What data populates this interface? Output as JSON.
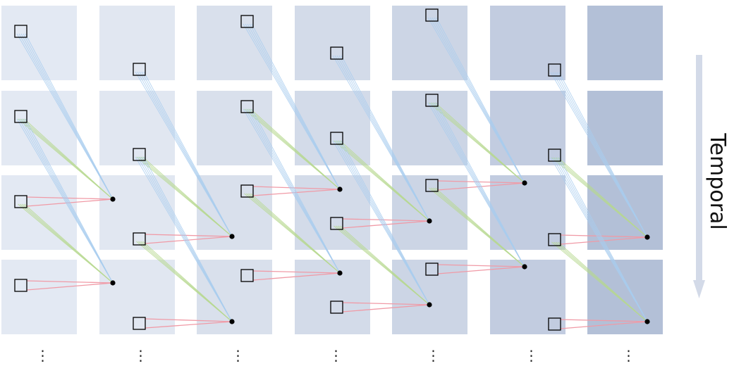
{
  "axis": {
    "label": "Temporal",
    "arrow_color": "#d3dae8"
  },
  "continuation_marker": "⋮",
  "colors": {
    "cell_shades": [
      "#e3e9f3",
      "#e1e7f1",
      "#d9e0ec",
      "#d3dbe9",
      "#ccd5e5",
      "#c2cce0",
      "#b3c0d7"
    ],
    "local_links": "#f09aa6",
    "spatial_links": "#b6d88e",
    "temporal_links": "#a8cdee",
    "marker_stroke": "#000000",
    "point_fill": "#000000"
  },
  "grid": {
    "columns": 7,
    "rows": 4
  }
}
